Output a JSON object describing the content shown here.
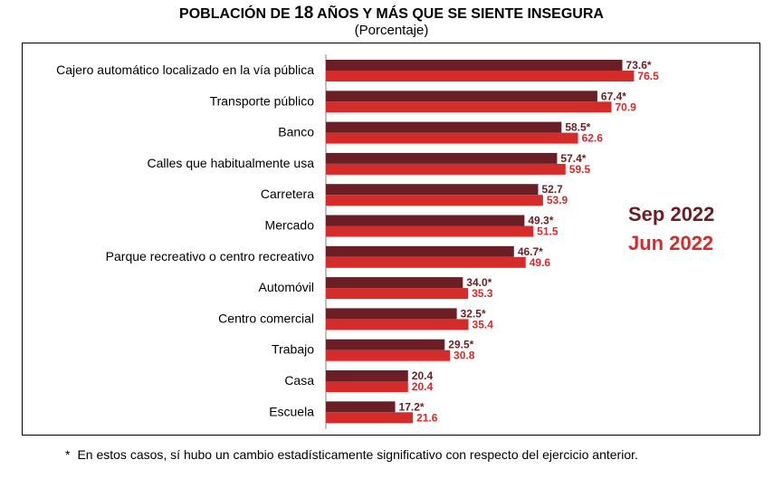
{
  "title_prefix": "POBLACIÓN DE ",
  "title_number": "18",
  "title_suffix": " AÑOS Y MÁS QUE SE SIENTE INSEGURA",
  "subtitle": "(Porcentaje)",
  "footnote_symbol": "*",
  "footnote_text": "En estos casos, sí hubo un cambio estadísticamente significativo con respecto del ejercicio anterior.",
  "colors": {
    "sep_2022": "#6b1f24",
    "jun_2022": "#d42b2b"
  },
  "chart_data": {
    "type": "bar",
    "orientation": "horizontal",
    "categories": [
      "Cajero automático localizado en la vía pública",
      "Transporte público",
      "Banco",
      "Calles que habitualmente usa",
      "Carretera",
      "Mercado",
      "Parque recreativo o centro recreativo",
      "Automóvil",
      "Centro comercial",
      "Trabajo",
      "Casa",
      "Escuela"
    ],
    "series": [
      {
        "name": "Sep 2022",
        "values": [
          73.6,
          67.4,
          58.5,
          57.4,
          52.7,
          49.3,
          46.7,
          34.0,
          32.5,
          29.5,
          20.4,
          17.2
        ]
      },
      {
        "name": "Jun 2022",
        "values": [
          76.5,
          70.9,
          62.6,
          59.5,
          53.9,
          51.5,
          49.6,
          35.3,
          35.4,
          30.8,
          20.4,
          21.6
        ]
      }
    ],
    "data_labels": {
      "Sep 2022": [
        "73.6*",
        "67.4*",
        "58.5*",
        "57.4*",
        "52.7",
        "49.3*",
        "46.7*",
        "34.0*",
        "32.5*",
        "29.5*",
        "20.4",
        "17.2*"
      ],
      "Jun 2022": [
        "76.5",
        "70.9",
        "62.6",
        "59.5",
        "53.9",
        "51.5",
        "49.6",
        "35.3",
        "35.4",
        "30.8",
        "20.4",
        "21.6"
      ]
    },
    "title": "POBLACIÓN DE 18 AÑOS Y MÁS QUE SE SIENTE INSEGURA",
    "subtitle": "(Porcentaje)",
    "xlabel": "",
    "ylabel": "",
    "xlim": [
      0,
      100
    ],
    "grid": false,
    "legend_position": "right"
  }
}
